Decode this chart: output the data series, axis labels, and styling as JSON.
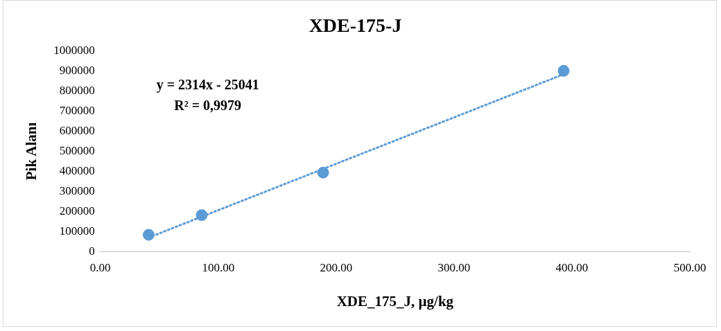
{
  "chart_data": {
    "type": "scatter",
    "title": "XDE-175-J",
    "xlabel": "XDE_175_J, µg/kg",
    "ylabel": "Pik Alanı",
    "annotations": [
      "y = 2314x - 25041",
      "R² = 0,9979"
    ],
    "xlim": [
      0,
      500
    ],
    "xticks": [
      {
        "value": 0,
        "label": "0.00"
      },
      {
        "value": 100,
        "label": "100.00"
      },
      {
        "value": 200,
        "label": "200.00"
      },
      {
        "value": 300,
        "label": "300.00"
      },
      {
        "value": 400,
        "label": "400.00"
      },
      {
        "value": 500,
        "label": "500.00"
      }
    ],
    "ylim": [
      0,
      1000000
    ],
    "yticks": [
      0,
      100000,
      200000,
      300000,
      400000,
      500000,
      600000,
      700000,
      800000,
      900000,
      1000000
    ],
    "marker": "circle",
    "series": [
      {
        "type": "scatter",
        "color": "#5b9bd5",
        "x": [
          41,
          86,
          189,
          393
        ],
        "values": [
          84000,
          182000,
          394000,
          901000
        ]
      },
      {
        "type": "line",
        "color": "#5b9bd5",
        "line_style": "dotted",
        "marker": "none",
        "x": [
          41,
          393
        ],
        "values": [
          70000,
          884000
        ]
      }
    ]
  }
}
